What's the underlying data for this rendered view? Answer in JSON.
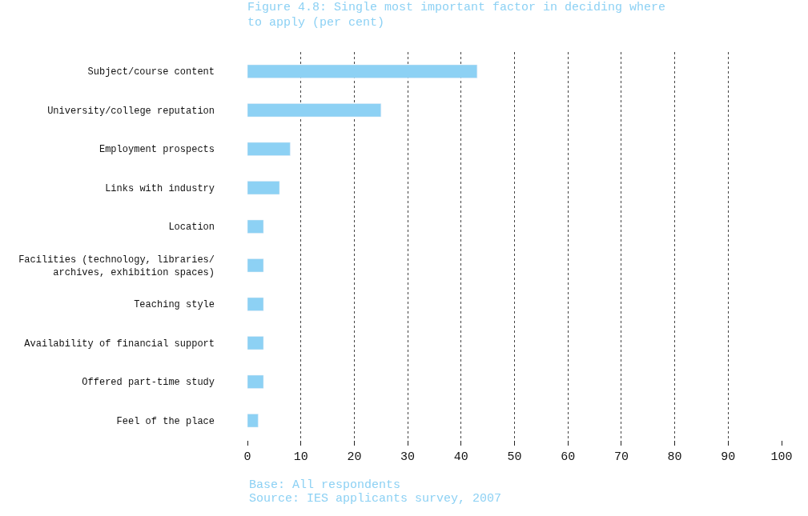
{
  "chart_data": {
    "type": "bar",
    "orientation": "horizontal",
    "title": "Figure 4.8: Single most important factor in deciding where\nto apply (per cent)",
    "categories": [
      "Subject/course content",
      "University/college reputation",
      "Employment prospects",
      "Links with industry",
      "Location",
      "Facilities (technology, libraries/\narchives, exhibition spaces)",
      "Teaching style",
      "Availability of financial support",
      "Offered part-time study",
      "Feel of the place"
    ],
    "values": [
      43,
      25,
      8,
      6,
      3,
      3,
      3,
      3,
      3,
      2
    ],
    "color": "#8dd1f4",
    "xlim": [
      0,
      100
    ],
    "xticks": [
      0,
      10,
      20,
      30,
      40,
      50,
      60,
      70,
      80,
      90,
      100
    ],
    "grid": "x",
    "annotations": [
      "Base: All respondents",
      "Source: IES applicants survey, 2007"
    ]
  }
}
